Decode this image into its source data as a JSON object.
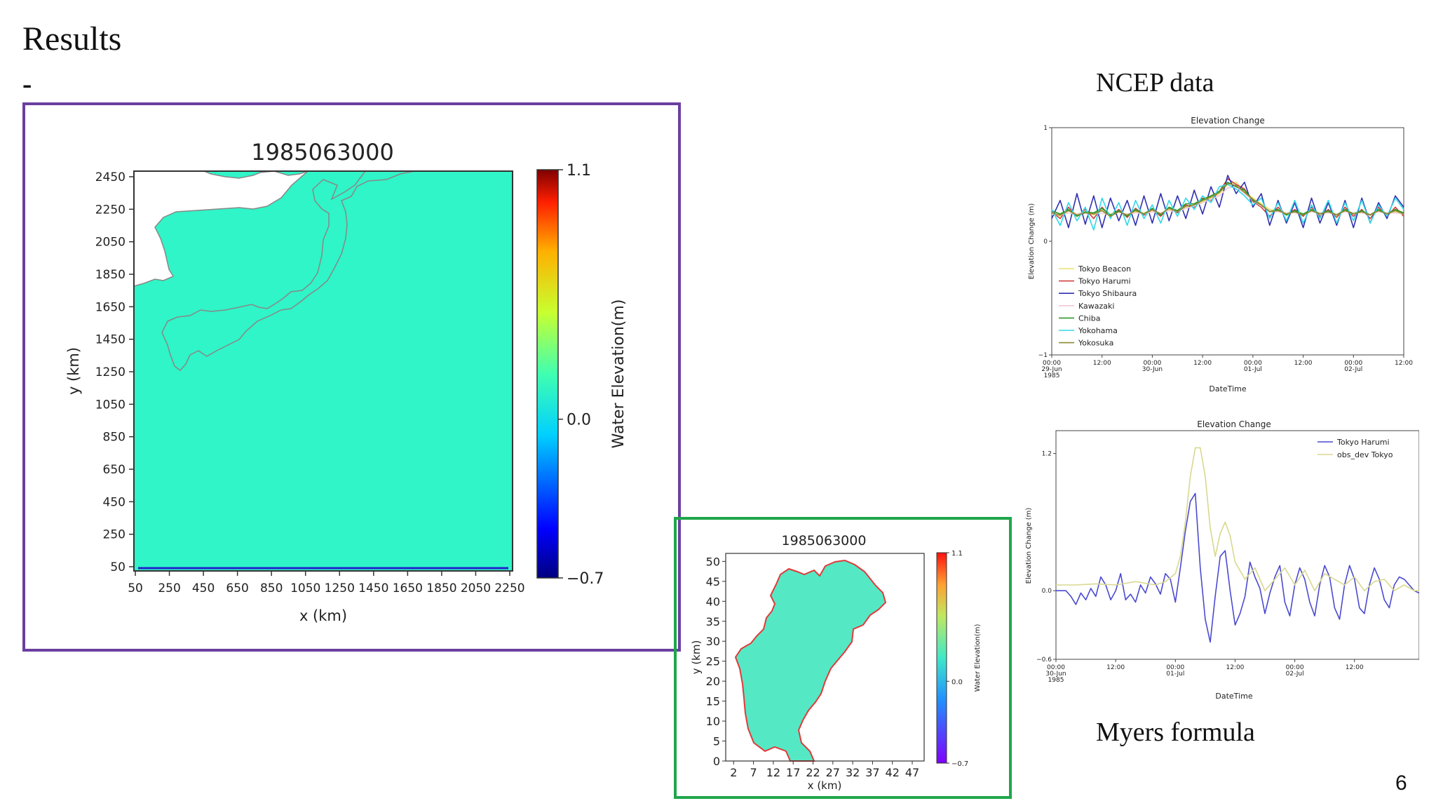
{
  "slide": {
    "title": "Results",
    "dash": "-",
    "ncep_label": "NCEP data",
    "myers_label": "Myers formula",
    "page_number": "6",
    "frame_colors": {
      "purple": "#6b3fa0",
      "green": "#1fa64a"
    }
  },
  "chart_data": [
    {
      "type": "heatmap",
      "title": "1985063000",
      "xlabel": "x (km)",
      "ylabel": "y (km)",
      "xticks": [
        "50",
        "250",
        "450",
        "650",
        "850",
        "1050",
        "1250",
        "1450",
        "1650",
        "1850",
        "2050",
        "2250"
      ],
      "yticks": [
        "50",
        "250",
        "450",
        "650",
        "850",
        "1050",
        "1250",
        "1450",
        "1650",
        "1850",
        "2050",
        "2250",
        "2450"
      ],
      "xlim": [
        50,
        2250
      ],
      "ylim": [
        50,
        2450
      ],
      "colorbar": {
        "label": "Water Elevation(m)",
        "ticks": [
          "1.1",
          "0.0",
          "−0.7"
        ],
        "min": -0.7,
        "max": 1.1
      },
      "fill_color": "#2ff5c8",
      "note_value": 0.0
    },
    {
      "type": "heatmap",
      "title": "1985063000",
      "xlabel": "x (km)",
      "ylabel": "y (km)",
      "xticks": [
        "2",
        "7",
        "12",
        "17",
        "22",
        "27",
        "32",
        "37",
        "42",
        "47"
      ],
      "yticks": [
        "0",
        "5",
        "10",
        "15",
        "20",
        "25",
        "30",
        "35",
        "40",
        "45",
        "50"
      ],
      "xlim": [
        0,
        50
      ],
      "ylim": [
        0,
        52
      ],
      "colorbar": {
        "label": "Water Elevation(m)",
        "ticks": [
          "1.1",
          "0.0",
          "−0.7"
        ],
        "min": -0.7,
        "max": 1.1
      },
      "fill_color": "#55e8c4",
      "coast_color": "#e03a3a"
    },
    {
      "type": "line",
      "title": "Elevation Change",
      "xlabel": "DateTime",
      "ylabel": "Elevation Change (m)",
      "ylim": [
        -1,
        1
      ],
      "yticks": [
        "1",
        "0",
        "−1"
      ],
      "xticks": [
        {
          "x": 0,
          "lines": [
            "00:00",
            "29-Jun",
            "1985"
          ]
        },
        {
          "x": 12,
          "lines": [
            "12:00"
          ]
        },
        {
          "x": 24,
          "lines": [
            "00:00",
            "30-Jun"
          ]
        },
        {
          "x": 36,
          "lines": [
            "12:00"
          ]
        },
        {
          "x": 48,
          "lines": [
            "00:00",
            "01-Jul"
          ]
        },
        {
          "x": 60,
          "lines": [
            "12:00"
          ]
        },
        {
          "x": 72,
          "lines": [
            "00:00",
            "02-Jul"
          ]
        },
        {
          "x": 84,
          "lines": [
            "12:00"
          ]
        }
      ],
      "xlim": [
        0,
        84
      ],
      "legend_position": "lower-left",
      "x": [
        0,
        2,
        4,
        6,
        8,
        10,
        12,
        14,
        16,
        18,
        20,
        22,
        24,
        26,
        28,
        30,
        32,
        34,
        36,
        38,
        40,
        42,
        44,
        46,
        48,
        50,
        52,
        54,
        56,
        58,
        60,
        62,
        64,
        66,
        68,
        70,
        72,
        74,
        76,
        78,
        80,
        82,
        84
      ],
      "series": [
        {
          "name": "Tokyo Beacon",
          "color": "#e8e070",
          "values": [
            0.25,
            0.22,
            0.27,
            0.24,
            0.26,
            0.23,
            0.28,
            0.24,
            0.27,
            0.23,
            0.26,
            0.25,
            0.27,
            0.24,
            0.28,
            0.26,
            0.3,
            0.32,
            0.35,
            0.38,
            0.42,
            0.5,
            0.52,
            0.44,
            0.38,
            0.33,
            0.28,
            0.27,
            0.25,
            0.26,
            0.24,
            0.27,
            0.25,
            0.26,
            0.24,
            0.27,
            0.25,
            0.26,
            0.24,
            0.27,
            0.25,
            0.26,
            0.24
          ]
        },
        {
          "name": "Tokyo Harumi",
          "color": "#d04040",
          "values": [
            0.26,
            0.2,
            0.3,
            0.22,
            0.28,
            0.2,
            0.3,
            0.22,
            0.28,
            0.21,
            0.29,
            0.23,
            0.28,
            0.22,
            0.3,
            0.25,
            0.32,
            0.3,
            0.38,
            0.36,
            0.44,
            0.55,
            0.5,
            0.46,
            0.35,
            0.3,
            0.22,
            0.3,
            0.23,
            0.28,
            0.22,
            0.3,
            0.22,
            0.28,
            0.21,
            0.3,
            0.22,
            0.28,
            0.2,
            0.3,
            0.22,
            0.3,
            0.22
          ]
        },
        {
          "name": "Tokyo Shibaura",
          "color": "#3030b0",
          "values": [
            0.2,
            0.36,
            0.12,
            0.42,
            0.15,
            0.4,
            0.12,
            0.38,
            0.18,
            0.36,
            0.14,
            0.4,
            0.16,
            0.42,
            0.18,
            0.4,
            0.2,
            0.45,
            0.24,
            0.48,
            0.3,
            0.58,
            0.42,
            0.52,
            0.3,
            0.42,
            0.14,
            0.36,
            0.16,
            0.34,
            0.12,
            0.38,
            0.16,
            0.34,
            0.14,
            0.36,
            0.12,
            0.38,
            0.16,
            0.34,
            0.2,
            0.4,
            0.3
          ]
        },
        {
          "name": "Kawazaki",
          "color": "#f0c8d8",
          "values": [
            0.24,
            0.23,
            0.25,
            0.24,
            0.26,
            0.24,
            0.25,
            0.23,
            0.26,
            0.24,
            0.25,
            0.24,
            0.26,
            0.25,
            0.27,
            0.26,
            0.29,
            0.31,
            0.34,
            0.37,
            0.4,
            0.47,
            0.48,
            0.42,
            0.36,
            0.31,
            0.27,
            0.26,
            0.25,
            0.25,
            0.24,
            0.26,
            0.25,
            0.25,
            0.24,
            0.26,
            0.25,
            0.25,
            0.24,
            0.26,
            0.25,
            0.25,
            0.24
          ]
        },
        {
          "name": "Chiba",
          "color": "#2a9a2a",
          "values": [
            0.27,
            0.24,
            0.28,
            0.22,
            0.26,
            0.25,
            0.29,
            0.23,
            0.27,
            0.22,
            0.28,
            0.24,
            0.29,
            0.23,
            0.3,
            0.27,
            0.33,
            0.33,
            0.37,
            0.4,
            0.44,
            0.52,
            0.48,
            0.45,
            0.36,
            0.32,
            0.26,
            0.28,
            0.23,
            0.27,
            0.24,
            0.28,
            0.24,
            0.27,
            0.23,
            0.28,
            0.24,
            0.27,
            0.23,
            0.28,
            0.24,
            0.28,
            0.25
          ]
        },
        {
          "name": "Yokohama",
          "color": "#30d8e8",
          "values": [
            0.28,
            0.14,
            0.34,
            0.18,
            0.3,
            0.1,
            0.38,
            0.2,
            0.34,
            0.14,
            0.36,
            0.2,
            0.32,
            0.16,
            0.36,
            0.22,
            0.38,
            0.28,
            0.4,
            0.34,
            0.48,
            0.5,
            0.46,
            0.4,
            0.32,
            0.38,
            0.2,
            0.34,
            0.18,
            0.36,
            0.16,
            0.32,
            0.2,
            0.36,
            0.16,
            0.34,
            0.18,
            0.36,
            0.16,
            0.32,
            0.22,
            0.38,
            0.28
          ]
        },
        {
          "name": "Yokosuka",
          "color": "#8a8a30",
          "values": [
            0.25,
            0.23,
            0.27,
            0.23,
            0.25,
            0.24,
            0.27,
            0.22,
            0.26,
            0.23,
            0.27,
            0.24,
            0.28,
            0.24,
            0.29,
            0.26,
            0.31,
            0.32,
            0.36,
            0.39,
            0.43,
            0.51,
            0.49,
            0.43,
            0.37,
            0.32,
            0.26,
            0.27,
            0.24,
            0.26,
            0.23,
            0.27,
            0.24,
            0.26,
            0.23,
            0.27,
            0.24,
            0.26,
            0.23,
            0.27,
            0.24,
            0.27,
            0.24
          ]
        }
      ]
    },
    {
      "type": "line",
      "title": "Elevation Change",
      "xlabel": "DateTime",
      "ylabel": "Elevation Change (m)",
      "ylim": [
        -0.6,
        1.4
      ],
      "yticks": [
        {
          "v": 1.2,
          "t": "1.2"
        },
        {
          "v": 0.0,
          "t": "0.0"
        },
        {
          "v": -0.6,
          "t": "−0.6"
        }
      ],
      "xticks": [
        {
          "x": 0,
          "lines": [
            "00:00",
            "30-Jun",
            "1985"
          ]
        },
        {
          "x": 12,
          "lines": [
            "12:00"
          ]
        },
        {
          "x": 24,
          "lines": [
            "00:00",
            "01-Jul"
          ]
        },
        {
          "x": 36,
          "lines": [
            "12:00"
          ]
        },
        {
          "x": 48,
          "lines": [
            "00:00",
            "02-Jul"
          ]
        },
        {
          "x": 60,
          "lines": [
            "12:00"
          ]
        }
      ],
      "xlim": [
        0,
        73
      ],
      "legend_position": "top-right",
      "series": [
        {
          "name": "Tokyo Harumi",
          "color": "#4a4ad0",
          "x": [
            0,
            2,
            3,
            4,
            5,
            6,
            7,
            8,
            9,
            10,
            11,
            12,
            13,
            14,
            15,
            16,
            17,
            18,
            19,
            20,
            21,
            22,
            23,
            24,
            25,
            26,
            27,
            28,
            29,
            30,
            31,
            32,
            33,
            34,
            35,
            36,
            37,
            38,
            39,
            40,
            41,
            42,
            43,
            44,
            45,
            46,
            47,
            48,
            49,
            50,
            51,
            52,
            53,
            54,
            55,
            56,
            57,
            58,
            59,
            60,
            61,
            62,
            63,
            64,
            65,
            66,
            67,
            68,
            69,
            70,
            71,
            72,
            73
          ],
          "values": [
            0.0,
            0.0,
            -0.05,
            -0.12,
            -0.02,
            -0.08,
            0.02,
            -0.05,
            0.12,
            0.05,
            -0.08,
            0.0,
            0.15,
            -0.08,
            -0.03,
            -0.1,
            0.05,
            -0.02,
            0.12,
            0.06,
            -0.03,
            0.15,
            0.1,
            -0.1,
            0.2,
            0.52,
            0.78,
            0.85,
            0.2,
            -0.25,
            -0.45,
            -0.05,
            0.3,
            0.35,
            0.0,
            -0.3,
            -0.2,
            -0.05,
            0.25,
            0.12,
            0.02,
            -0.2,
            -0.02,
            0.12,
            0.22,
            -0.1,
            -0.22,
            0.05,
            0.2,
            0.1,
            -0.1,
            -0.22,
            0.05,
            0.22,
            0.12,
            -0.15,
            -0.25,
            0.05,
            0.22,
            0.1,
            -0.15,
            -0.2,
            0.05,
            0.2,
            0.1,
            -0.08,
            -0.15,
            0.05,
            0.12,
            0.1,
            0.05,
            0.0,
            -0.02
          ]
        },
        {
          "name": "obs_dev Tokyo",
          "color": "#d8d890",
          "x": [
            0,
            4,
            8,
            12,
            16,
            20,
            22,
            24,
            25,
            26,
            27,
            28,
            29,
            30,
            31,
            32,
            33,
            34,
            35,
            36,
            38,
            40,
            42,
            44,
            46,
            48,
            50,
            52,
            54,
            56,
            58,
            60,
            62,
            64,
            66,
            68,
            70,
            72,
            73
          ],
          "values": [
            0.05,
            0.05,
            0.06,
            0.05,
            0.08,
            0.05,
            0.08,
            0.15,
            0.3,
            0.6,
            1.0,
            1.25,
            1.25,
            1.0,
            0.55,
            0.3,
            0.5,
            0.6,
            0.48,
            0.25,
            0.1,
            0.2,
            0.0,
            0.1,
            0.2,
            0.05,
            0.18,
            0.0,
            0.15,
            0.1,
            0.05,
            0.12,
            0.0,
            0.08,
            0.1,
            0.0,
            0.05,
            0.0,
            0.0
          ]
        }
      ]
    }
  ]
}
